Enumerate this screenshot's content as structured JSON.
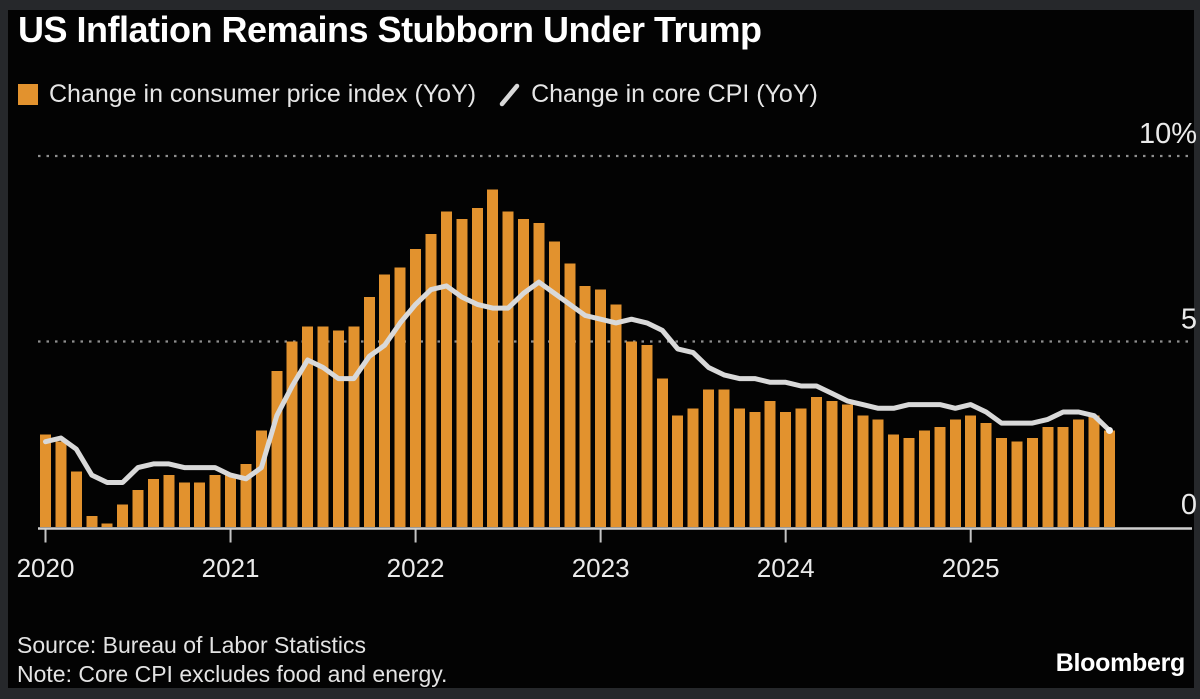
{
  "chart_data": {
    "type": "bar",
    "title": "US Inflation Remains Stubborn Under Trump",
    "x": [
      "2020-01",
      "2020-02",
      "2020-03",
      "2020-04",
      "2020-05",
      "2020-06",
      "2020-07",
      "2020-08",
      "2020-09",
      "2020-10",
      "2020-11",
      "2020-12",
      "2021-01",
      "2021-02",
      "2021-03",
      "2021-04",
      "2021-05",
      "2021-06",
      "2021-07",
      "2021-08",
      "2021-09",
      "2021-10",
      "2021-11",
      "2021-12",
      "2022-01",
      "2022-02",
      "2022-03",
      "2022-04",
      "2022-05",
      "2022-06",
      "2022-07",
      "2022-08",
      "2022-09",
      "2022-10",
      "2022-11",
      "2022-12",
      "2023-01",
      "2023-02",
      "2023-03",
      "2023-04",
      "2023-05",
      "2023-06",
      "2023-07",
      "2023-08",
      "2023-09",
      "2023-10",
      "2023-11",
      "2023-12",
      "2024-01",
      "2024-02",
      "2024-03",
      "2024-04",
      "2024-05",
      "2024-06",
      "2024-07",
      "2024-08",
      "2024-09",
      "2024-10",
      "2024-11",
      "2024-12",
      "2025-01",
      "2025-02",
      "2025-03",
      "2025-04",
      "2025-05",
      "2025-06",
      "2025-07",
      "2025-08",
      "2025-09",
      "2025-10"
    ],
    "series": [
      {
        "name": "Change in consumer price index (YoY)",
        "type": "bar",
        "color": "#E2922E",
        "values": [
          2.5,
          2.3,
          1.5,
          0.3,
          0.1,
          0.6,
          1.0,
          1.3,
          1.4,
          1.2,
          1.2,
          1.4,
          1.4,
          1.7,
          2.6,
          4.2,
          5.0,
          5.4,
          5.4,
          5.3,
          5.4,
          6.2,
          6.8,
          7.0,
          7.5,
          7.9,
          8.5,
          8.3,
          8.6,
          9.1,
          8.5,
          8.3,
          8.2,
          7.7,
          7.1,
          6.5,
          6.4,
          6.0,
          5.0,
          4.9,
          4.0,
          3.0,
          3.2,
          3.7,
          3.7,
          3.2,
          3.1,
          3.4,
          3.1,
          3.2,
          3.5,
          3.4,
          3.3,
          3.0,
          2.9,
          2.5,
          2.4,
          2.6,
          2.7,
          2.9,
          3.0,
          2.8,
          2.4,
          2.3,
          2.4,
          2.7,
          2.7,
          2.9,
          3.0,
          2.6
        ]
      },
      {
        "name": "Change in core CPI (YoY)",
        "type": "line",
        "color": "#D9D9D9",
        "values": [
          2.3,
          2.4,
          2.1,
          1.4,
          1.2,
          1.2,
          1.6,
          1.7,
          1.7,
          1.6,
          1.6,
          1.6,
          1.4,
          1.3,
          1.6,
          3.0,
          3.8,
          4.5,
          4.3,
          4.0,
          4.0,
          4.6,
          4.9,
          5.5,
          6.0,
          6.4,
          6.5,
          6.2,
          6.0,
          5.9,
          5.9,
          6.3,
          6.6,
          6.3,
          6.0,
          5.7,
          5.6,
          5.5,
          5.6,
          5.5,
          5.3,
          4.8,
          4.7,
          4.3,
          4.1,
          4.0,
          4.0,
          3.9,
          3.9,
          3.8,
          3.8,
          3.6,
          3.4,
          3.3,
          3.2,
          3.2,
          3.3,
          3.3,
          3.3,
          3.2,
          3.3,
          3.1,
          2.8,
          2.8,
          2.8,
          2.9,
          3.1,
          3.1,
          3.0,
          2.6
        ]
      }
    ],
    "xlabel": "",
    "ylabel": "",
    "ylim": [
      0,
      10.5
    ],
    "x_tick_labels": [
      "2020",
      "2021",
      "2022",
      "2023",
      "2024",
      "2025"
    ],
    "y_ticks": [
      {
        "value": 10,
        "label": "10%"
      },
      {
        "value": 5,
        "label": "5"
      },
      {
        "value": 0,
        "label": "0"
      }
    ],
    "y_axis_side": "right",
    "gridlines": "dotted-horizontal",
    "legend_position": "top-left",
    "background": "#030303"
  },
  "footer": {
    "source": "Source: Bureau of Labor Statistics",
    "note": "Note: Core CPI excludes food and energy.",
    "brand": "Bloomberg"
  }
}
